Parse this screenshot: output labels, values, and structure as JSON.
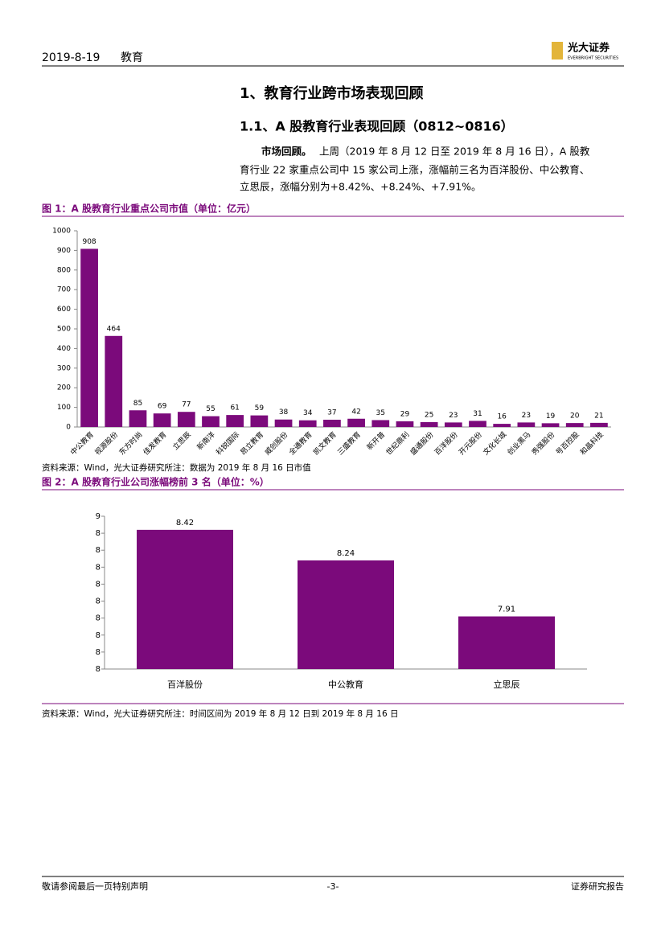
{
  "header": {
    "date": "2019-8-19",
    "section": "教育",
    "brand": "光大证券",
    "brand_en": "EVERBRIGHT SECURITIES"
  },
  "heading": "1、教育行业跨市场表现回顾",
  "subheading": "1.1、A 股教育行业表现回顾（0812~0816）",
  "paragraph": {
    "lead": "市场回顾。",
    "lines": [
      "上周（2019 年 8 月 12 日至 2019 年 8 月 16 日），A 股教",
      "育行业 22 家重点公司中 15 家公司上涨，涨幅前三名为百洋股份、中公教育、",
      "立思辰，涨幅分别为+8.42%、+8.24%、+7.91%。"
    ]
  },
  "chart_data": [
    {
      "type": "bar",
      "title": "图 1：A 股教育行业重点公司市值（单位：亿元）",
      "color": "#7b0a7b",
      "categories": [
        "中公教育",
        "视源股份",
        "东方时尚",
        "佳发教育",
        "立思辰",
        "新南洋",
        "科锐国际",
        "昂立教育",
        "威创股份",
        "全通教育",
        "凯文教育",
        "三盛教育",
        "新开普",
        "世纪鼎利",
        "盛通股份",
        "百洋股份",
        "开元股份",
        "文化长城",
        "创业黑马",
        "秀强股份",
        "号百控股",
        "和晶科技"
      ],
      "values": [
        908,
        464,
        85,
        69,
        77,
        55,
        61,
        59,
        38,
        34,
        37,
        42,
        35,
        29,
        25,
        23,
        31,
        16,
        23,
        19,
        20,
        21
      ],
      "ylim": [
        0,
        1000
      ],
      "yticks": [
        0,
        100,
        200,
        300,
        400,
        500,
        600,
        700,
        800,
        900,
        1000
      ],
      "source": "资料来源：Wind，光大证券研究所注：数据为 2019 年 8 月 16 日市值"
    },
    {
      "type": "bar",
      "title": "图 2：A 股教育行业公司涨幅榜前 3 名（单位：%）",
      "color": "#7b0a7b",
      "categories": [
        "百洋股份",
        "中公教育",
        "立思辰"
      ],
      "values": [
        8.42,
        8.24,
        7.91
      ],
      "ylim": [
        7.6,
        8.5
      ],
      "yticks": [
        {
          "value": 7.6,
          "label": "8"
        },
        {
          "value": 7.7,
          "label": "8"
        },
        {
          "value": 7.8,
          "label": "8"
        },
        {
          "value": 7.9,
          "label": "8"
        },
        {
          "value": 8.0,
          "label": "8"
        },
        {
          "value": 8.1,
          "label": "8"
        },
        {
          "value": 8.2,
          "label": "8"
        },
        {
          "value": 8.3,
          "label": "8"
        },
        {
          "value": 8.4,
          "label": "8"
        },
        {
          "value": 8.5,
          "label": "9"
        }
      ],
      "source": "资料来源：Wind，光大证券研究所注：时间区间为 2019 年 8 月 12 日到 2019 年 8 月 16 日"
    }
  ],
  "footer": {
    "left": "敬请参阅最后一页特别声明",
    "page": "-3-",
    "right": "证券研究报告"
  }
}
